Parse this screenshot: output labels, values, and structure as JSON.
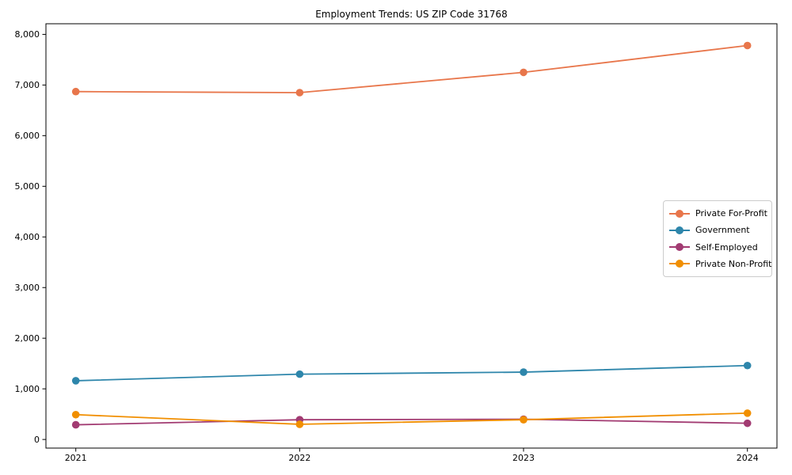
{
  "chart_data": {
    "type": "line",
    "title": "Employment Trends: US ZIP Code 31768",
    "xlabel": "",
    "ylabel": "",
    "categories": [
      "2021",
      "2022",
      "2023",
      "2024"
    ],
    "series": [
      {
        "name": "Private For-Profit",
        "color": "#E8764B",
        "values": [
          6870,
          6850,
          7250,
          7780
        ]
      },
      {
        "name": "Government",
        "color": "#2E86AB",
        "values": [
          1160,
          1290,
          1330,
          1460
        ]
      },
      {
        "name": "Self-Employed",
        "color": "#A23B72",
        "values": [
          290,
          390,
          400,
          320
        ]
      },
      {
        "name": "Private Non-Profit",
        "color": "#F18F01",
        "values": [
          490,
          300,
          390,
          520
        ]
      }
    ],
    "ylim": [
      -170,
      8210
    ],
    "y_ticks": [
      0,
      1000,
      2000,
      3000,
      4000,
      5000,
      6000,
      7000,
      8000
    ],
    "y_tick_labels": [
      "0",
      "1,000",
      "2,000",
      "3,000",
      "4,000",
      "5,000",
      "6,000",
      "7,000",
      "8,000"
    ],
    "grid": false,
    "legend_position": "center right",
    "frame": "full-box",
    "text_color": "#000000",
    "spine_color": "#000000"
  }
}
